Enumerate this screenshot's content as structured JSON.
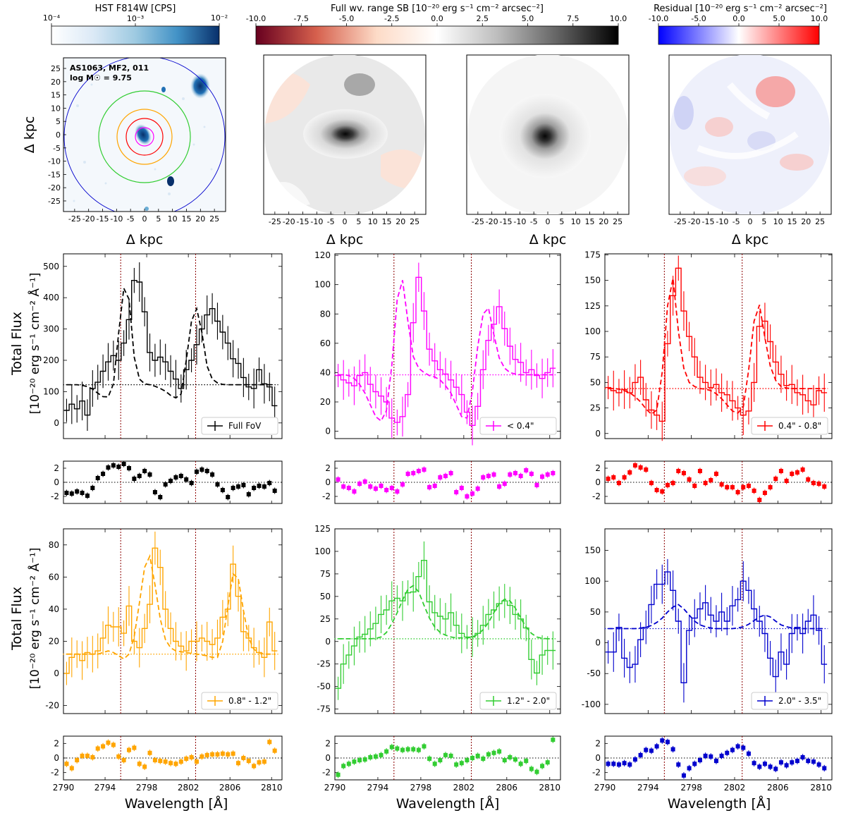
{
  "figure": {
    "x_axis_label": "Wavelength [Å]",
    "y_axis_label_line1": "Total Flux",
    "y_axis_label_line2": "[10⁻²⁰ erg s⁻¹ cm⁻² Å⁻¹]",
    "map_axis_label": "Δ kpc",
    "map_axis_label_y": "Δ kpc",
    "map_ticks": [
      "-25",
      "-20",
      "-15",
      "-10",
      "-5",
      "0",
      "5",
      "10",
      "15",
      "20",
      "25"
    ],
    "map_y_ticks": [
      "25",
      "20",
      "15",
      "10",
      "5",
      "0",
      "-5",
      "-10",
      "-15",
      "-20",
      "-25"
    ],
    "hst_annotation_line1": "AS1063, MF2, 011",
    "hst_annotation_line2": "log M☉ = 9.75",
    "line_markers": [
      2795.5,
      2802.7
    ],
    "colorbars": [
      {
        "title": "HST F814W [CPS]",
        "type": "log",
        "ticks": [
          "10⁻⁴",
          "10⁻³",
          "10⁻²"
        ],
        "colors": [
          "#ffffff",
          "#dbe9f6",
          "#9ecae1",
          "#4292c6",
          "#08306b"
        ]
      },
      {
        "title": "Full wv. range SB [10⁻²⁰ erg s⁻¹ cm⁻² arcsec⁻²]",
        "type": "linear",
        "ticks": [
          "-10.0",
          "-7.5",
          "-5.0",
          "-2.5",
          "0.0",
          "2.5",
          "5.0",
          "7.5",
          "10.0"
        ],
        "colors": [
          "#67001f",
          "#d6604d",
          "#fddbc7",
          "#ffffff",
          "#bdbdbd",
          "#636363",
          "#000000"
        ]
      },
      {
        "title": "Residual [10⁻²⁰ erg s⁻¹ cm⁻² arcsec⁻²]",
        "type": "linear",
        "ticks": [
          "-10.0",
          "-5.0",
          "0.0",
          "5.0",
          "10.0"
        ],
        "colors": [
          "#0000ff",
          "#8080ff",
          "#ffffff",
          "#ff8080",
          "#ff0000"
        ]
      }
    ]
  },
  "chart_data": [
    {
      "type": "line",
      "name": "Full FoV",
      "color": "#000000",
      "ylim": [
        -50,
        540
      ],
      "yticks": [
        0,
        100,
        200,
        300,
        400,
        500
      ],
      "continuum": 122,
      "flux": [
        40,
        60,
        45,
        70,
        25,
        110,
        130,
        165,
        195,
        215,
        200,
        255,
        330,
        455,
        450,
        355,
        225,
        200,
        210,
        195,
        165,
        140,
        110,
        170,
        200,
        250,
        300,
        345,
        365,
        325,
        290,
        255,
        205,
        190,
        145,
        115,
        110,
        170,
        125,
        115,
        55
      ],
      "model": [
        122,
        122,
        122,
        120,
        116,
        108,
        95,
        84,
        83,
        125,
        285,
        430,
        395,
        210,
        140,
        125,
        122,
        117,
        110,
        101,
        88,
        80,
        92,
        200,
        325,
        365,
        290,
        182,
        140,
        128,
        123,
        122,
        122,
        122,
        122,
        122,
        122,
        122,
        122,
        122,
        122
      ],
      "residual": [
        -1.5,
        -1.6,
        -1.3,
        -1.5,
        -1.9,
        -0.8,
        0.6,
        1.2,
        2.1,
        2.4,
        2.2,
        2.6,
        2.0,
        0.5,
        0.9,
        1.6,
        1.1,
        -1.4,
        -2.1,
        -0.3,
        0.2,
        0.7,
        0.9,
        0.4,
        -0.1,
        1.5,
        1.8,
        1.6,
        1.1,
        -0.3,
        -1.1,
        -2.1,
        -0.8,
        -0.6,
        -0.4,
        -1.7,
        -0.8,
        -0.5,
        -0.6,
        -0.1,
        -1.2
      ],
      "legend": "Full FoV"
    },
    {
      "type": "line",
      "name": "< 0.4\"",
      "color": "#ff00ff",
      "ylim": [
        -5,
        121
      ],
      "yticks": [
        0,
        20,
        40,
        60,
        80,
        100,
        120
      ],
      "continuum": 38.5,
      "flux": [
        38,
        35,
        33,
        31,
        38,
        40,
        32,
        27,
        24,
        20,
        9,
        6,
        10,
        25,
        74,
        105,
        82,
        56,
        48,
        42,
        39,
        35,
        30,
        25,
        13,
        4,
        17,
        42,
        62,
        73,
        85,
        70,
        58,
        49,
        47,
        40,
        42,
        38,
        36,
        40,
        43
      ],
      "model": [
        38.5,
        38.5,
        38,
        36,
        32,
        26,
        18,
        10,
        7,
        14,
        45,
        90,
        103,
        75,
        51,
        43,
        40,
        38,
        37,
        35,
        31,
        26,
        18,
        10,
        9,
        27,
        58,
        80,
        84,
        66,
        50,
        43,
        40,
        39,
        38.5,
        38.5,
        38.5,
        38.5,
        38.5,
        38.5,
        38.5
      ],
      "residual": [
        0.4,
        -0.6,
        -0.8,
        -1.3,
        -0.2,
        0.1,
        -0.6,
        -0.9,
        -0.5,
        -1.1,
        -0.8,
        -1.3,
        -0.3,
        1.2,
        1.3,
        1.6,
        1.8,
        -0.7,
        -0.5,
        0.7,
        0.9,
        1.3,
        -1.4,
        -0.8,
        -2.0,
        -1.6,
        -0.9,
        0.7,
        0.9,
        1.1,
        -0.6,
        -0.2,
        1.1,
        1.3,
        0.9,
        1.7,
        1.2,
        -0.4,
        0.8,
        1.1,
        1.3
      ],
      "legend": "< 0.4\""
    },
    {
      "type": "line",
      "name": "0.4\" - 0.8\"",
      "color": "#ff0000",
      "ylim": [
        -5,
        176
      ],
      "yticks": [
        0,
        25,
        50,
        75,
        100,
        125,
        150,
        175
      ],
      "continuum": 44,
      "flux": [
        45,
        42,
        40,
        43,
        40,
        50,
        55,
        33,
        23,
        18,
        12,
        88,
        135,
        162,
        120,
        95,
        75,
        55,
        50,
        45,
        48,
        40,
        38,
        32,
        25,
        18,
        22,
        50,
        105,
        110,
        90,
        70,
        58,
        47,
        48,
        40,
        38,
        32,
        28,
        42,
        40
      ],
      "model": [
        44,
        44,
        43.5,
        42,
        40,
        36,
        31,
        24,
        19,
        23,
        60,
        125,
        152,
        100,
        64,
        50,
        46,
        44,
        43.5,
        42,
        39,
        34,
        28,
        22,
        20,
        26,
        62,
        110,
        126,
        94,
        66,
        52,
        46,
        44.5,
        44,
        44,
        44,
        44,
        44,
        44,
        44
      ],
      "residual": [
        0.5,
        0.7,
        -0.1,
        0.7,
        1.4,
        2.4,
        2.1,
        1.8,
        -0.1,
        -1.1,
        -1.3,
        -0.4,
        -0.1,
        1.6,
        1.3,
        0.4,
        -0.5,
        1.6,
        -0.1,
        0.3,
        1.2,
        -0.3,
        -0.7,
        -0.7,
        -1.4,
        -0.7,
        -0.5,
        -1.2,
        -2.5,
        -1.5,
        -0.7,
        0.5,
        1.6,
        0.2,
        1.2,
        1.4,
        1.8,
        0.4,
        -0.1,
        -0.2,
        -0.6
      ],
      "legend": "0.4\" - 0.8\""
    },
    {
      "type": "line",
      "name": "0.8\" - 1.2\"",
      "color": "#ffa500",
      "ylim": [
        -25,
        90
      ],
      "yticks": [
        -20,
        0,
        20,
        40,
        60,
        80
      ],
      "continuum": 12,
      "flux": [
        0,
        10,
        12,
        8,
        13,
        12,
        14,
        22,
        30,
        29,
        29,
        25,
        42,
        20,
        16,
        28,
        43,
        78,
        66,
        40,
        28,
        20,
        17,
        14,
        20,
        20,
        22,
        20,
        18,
        22,
        35,
        40,
        68,
        48,
        26,
        22,
        16,
        13,
        10,
        32,
        14
      ],
      "model": [
        12,
        12,
        12,
        12,
        12,
        12,
        12,
        13,
        14,
        13,
        11,
        9,
        12,
        23,
        44,
        66,
        73,
        55,
        34,
        21,
        16,
        14,
        13.5,
        13,
        12.5,
        12,
        11.5,
        11,
        10,
        10,
        20,
        42,
        62,
        59,
        39,
        22,
        15,
        13,
        12,
        12,
        12
      ],
      "residual": [
        -0.8,
        -1.4,
        -0.3,
        0.3,
        0.3,
        0.1,
        1.3,
        1.6,
        2.1,
        1.8,
        0.2,
        -0.3,
        1.1,
        1.4,
        -0.8,
        -1.2,
        0.7,
        -0.3,
        -0.4,
        -0.5,
        -0.7,
        -0.8,
        -0.5,
        -0.1,
        0.1,
        -0.5,
        0.2,
        0.4,
        0.5,
        0.5,
        0.6,
        0.5,
        0.6,
        -0.7,
        0.0,
        -0.4,
        -1.1,
        -0.6,
        -0.5,
        2.2,
        1.0
      ],
      "legend": "0.8\" - 1.2\""
    },
    {
      "type": "line",
      "name": "1.2\" - 2.0\"",
      "color": "#32cd32",
      "ylim": [
        -80,
        125
      ],
      "yticks": [
        -75,
        -50,
        -25,
        0,
        25,
        50,
        75,
        100,
        125
      ],
      "continuum": 3,
      "flux": [
        -52,
        -25,
        -15,
        -5,
        5,
        8,
        14,
        20,
        30,
        35,
        45,
        48,
        45,
        54,
        55,
        72,
        90,
        44,
        32,
        28,
        25,
        32,
        18,
        9,
        5,
        5,
        9,
        18,
        30,
        35,
        42,
        45,
        40,
        30,
        25,
        15,
        -20,
        -35,
        -15,
        -10,
        -10
      ],
      "model": [
        3,
        3,
        3,
        3,
        3,
        3,
        3,
        3.5,
        5,
        10,
        20,
        32,
        46,
        58,
        62,
        55,
        40,
        26,
        16,
        10,
        7,
        5,
        4,
        4,
        4,
        5,
        8,
        13,
        21,
        32,
        42,
        47,
        45,
        37,
        26,
        16,
        9,
        5,
        3.5,
        3,
        3
      ],
      "residual": [
        -2.3,
        -1.1,
        -0.8,
        -0.5,
        -0.3,
        -0.2,
        0.1,
        0.2,
        0.4,
        0.9,
        1.5,
        1.3,
        1.1,
        1.2,
        1.2,
        1.1,
        1.6,
        -0.1,
        -0.8,
        -0.3,
        0.4,
        0.3,
        -0.9,
        -0.7,
        -0.3,
        0.0,
        0.3,
        -0.1,
        0.5,
        0.7,
        0.9,
        -0.3,
        0.1,
        -0.2,
        -0.8,
        -0.4,
        -1.5,
        -1.9,
        -1.1,
        -0.6,
        2.5
      ],
      "legend": "1.2\" - 2.0\""
    },
    {
      "type": "line",
      "name": "2.0\" - 3.5\"",
      "color": "#0000cd",
      "ylim": [
        -115,
        185
      ],
      "yticks": [
        -100,
        -50,
        0,
        50,
        100,
        150
      ],
      "continuum": 23,
      "flux": [
        -15,
        -15,
        25,
        -25,
        -40,
        -35,
        5,
        25,
        62,
        95,
        95,
        115,
        85,
        35,
        -65,
        20,
        40,
        55,
        65,
        45,
        35,
        50,
        35,
        60,
        70,
        100,
        85,
        55,
        35,
        15,
        -25,
        -55,
        -15,
        -35,
        15,
        25,
        15,
        35,
        45,
        20,
        -35
      ],
      "model": [
        23,
        23,
        23,
        23,
        23,
        23,
        24,
        25,
        28,
        33,
        40,
        50,
        58,
        62,
        55,
        45,
        35,
        29,
        26,
        24,
        23,
        23,
        23,
        23,
        24,
        26,
        30,
        36,
        42,
        45,
        42,
        35,
        29,
        26,
        24,
        23,
        23,
        23,
        23,
        23,
        23
      ],
      "residual": [
        -0.8,
        -0.8,
        -0.9,
        -0.7,
        -0.9,
        -0.2,
        0.4,
        1.1,
        1.0,
        1.6,
        2.4,
        2.2,
        1.2,
        -0.9,
        -2.4,
        -1.4,
        -0.8,
        -0.3,
        0.3,
        0.2,
        -0.4,
        0.3,
        0.7,
        1.1,
        1.6,
        1.4,
        0.6,
        -0.7,
        -1.2,
        -0.8,
        -1.2,
        -1.5,
        -0.6,
        -1.0,
        -0.6,
        -0.4,
        0.1,
        -0.4,
        -0.5,
        -0.9,
        -1.4
      ],
      "legend": "2.0\" - 3.5\""
    }
  ]
}
